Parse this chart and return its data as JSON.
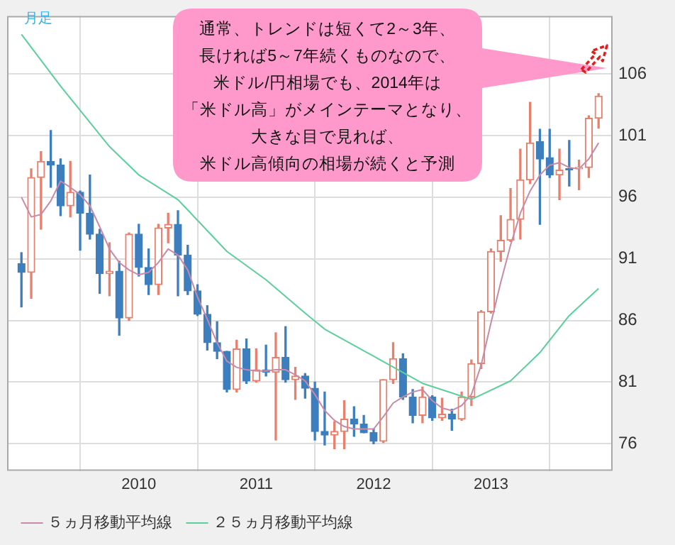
{
  "chart_data": {
    "type": "candlestick",
    "x": [
      "2009-01",
      "2009-02",
      "2009-03",
      "2009-04",
      "2009-05",
      "2009-06",
      "2009-07",
      "2009-08",
      "2009-09",
      "2009-10",
      "2009-11",
      "2009-12",
      "2010-01",
      "2010-02",
      "2010-03",
      "2010-04",
      "2010-05",
      "2010-06",
      "2010-07",
      "2010-08",
      "2010-09",
      "2010-10",
      "2010-11",
      "2010-12",
      "2011-01",
      "2011-02",
      "2011-03",
      "2011-04",
      "2011-05",
      "2011-06",
      "2011-07",
      "2011-08",
      "2011-09",
      "2011-10",
      "2011-11",
      "2011-12",
      "2012-01",
      "2012-02",
      "2012-03",
      "2012-04",
      "2012-05",
      "2012-06",
      "2012-07",
      "2012-08",
      "2012-09",
      "2012-10",
      "2012-11",
      "2012-12",
      "2013-01",
      "2013-02",
      "2013-03",
      "2013-04",
      "2013-05",
      "2013-06",
      "2013-07",
      "2013-08",
      "2013-09",
      "2013-10",
      "2013-11",
      "2013-12"
    ],
    "ohlc": [
      [
        90.6,
        91.5,
        87.1,
        89.9
      ],
      [
        89.9,
        98.3,
        87.8,
        97.6
      ],
      [
        97.6,
        99.7,
        93.4,
        98.9
      ],
      [
        98.9,
        101.4,
        96.8,
        98.6
      ],
      [
        98.6,
        99.1,
        94.5,
        95.3
      ],
      [
        95.3,
        98.9,
        94.4,
        96.4
      ],
      [
        96.4,
        96.5,
        91.7,
        94.7
      ],
      [
        94.7,
        97.8,
        92.6,
        93.0
      ],
      [
        93.0,
        93.4,
        88.2,
        89.8
      ],
      [
        89.8,
        92.3,
        88.0,
        90.0
      ],
      [
        90.0,
        90.8,
        84.8,
        86.2
      ],
      [
        86.2,
        93.1,
        86.0,
        93.0
      ],
      [
        93.0,
        93.8,
        89.6,
        90.3
      ],
      [
        90.3,
        91.8,
        88.1,
        88.9
      ],
      [
        88.9,
        93.8,
        88.1,
        93.5
      ],
      [
        93.5,
        94.7,
        92.3,
        93.8
      ],
      [
        93.8,
        94.9,
        88.0,
        91.3
      ],
      [
        91.3,
        92.1,
        88.1,
        88.4
      ],
      [
        88.4,
        88.9,
        86.4,
        86.5
      ],
      [
        86.5,
        87.2,
        83.6,
        84.2
      ],
      [
        84.2,
        85.9,
        82.9,
        83.5
      ],
      [
        83.5,
        83.5,
        80.2,
        80.4
      ],
      [
        80.4,
        84.4,
        80.2,
        83.7
      ],
      [
        83.7,
        84.5,
        80.9,
        81.1
      ],
      [
        81.1,
        83.7,
        81.0,
        82.0
      ],
      [
        82.0,
        84.0,
        81.5,
        81.8
      ],
      [
        81.8,
        85.0,
        76.3,
        83.0
      ],
      [
        83.0,
        85.5,
        81.0,
        81.2
      ],
      [
        81.2,
        82.2,
        79.6,
        81.5
      ],
      [
        81.5,
        81.7,
        79.7,
        80.5
      ],
      [
        80.5,
        81.0,
        76.3,
        77.0
      ],
      [
        77.0,
        80.2,
        75.9,
        76.7
      ],
      [
        76.7,
        77.8,
        75.6,
        77.0
      ],
      [
        77.0,
        79.5,
        75.6,
        78.0
      ],
      [
        78.0,
        79.0,
        76.6,
        77.6
      ],
      [
        77.6,
        78.3,
        76.9,
        76.9
      ],
      [
        76.9,
        77.2,
        76.0,
        76.2
      ],
      [
        76.2,
        81.2,
        76.1,
        81.2
      ],
      [
        81.2,
        84.2,
        80.9,
        82.9
      ],
      [
        82.9,
        83.3,
        79.6,
        79.8
      ],
      [
        79.8,
        80.4,
        77.7,
        78.3
      ],
      [
        78.3,
        80.6,
        77.7,
        79.8
      ],
      [
        79.8,
        79.9,
        77.9,
        78.1
      ],
      [
        78.1,
        79.7,
        77.9,
        78.4
      ],
      [
        78.4,
        78.8,
        77.1,
        78.0
      ],
      [
        78.0,
        80.2,
        77.9,
        79.8
      ],
      [
        79.8,
        82.8,
        79.1,
        82.5
      ],
      [
        82.5,
        86.8,
        82.1,
        86.7
      ],
      [
        86.7,
        91.8,
        86.6,
        91.6
      ],
      [
        91.6,
        94.5,
        90.8,
        92.5
      ],
      [
        92.5,
        96.7,
        92.4,
        94.2
      ],
      [
        94.2,
        99.9,
        92.6,
        97.4
      ],
      [
        97.4,
        103.7,
        97.1,
        100.4
      ],
      [
        100.5,
        101.5,
        93.8,
        99.1
      ],
      [
        99.2,
        101.5,
        97.6,
        97.8
      ],
      [
        97.8,
        99.9,
        95.8,
        98.2
      ],
      [
        98.3,
        100.6,
        96.9,
        98.2
      ],
      [
        98.3,
        99.0,
        96.6,
        98.4
      ],
      [
        98.4,
        102.6,
        97.6,
        102.4
      ],
      [
        102.4,
        104.4,
        101.6,
        104.2
      ]
    ],
    "colors": [
      "#3d7ebf",
      "#e8806e",
      "#e8806e",
      "#3d7ebf",
      "#3d7ebf",
      "#e8806e",
      "#3d7ebf",
      "#3d7ebf",
      "#3d7ebf",
      "#e8806e",
      "#3d7ebf",
      "#e8806e",
      "#3d7ebf",
      "#3d7ebf",
      "#e8806e",
      "#e8806e",
      "#3d7ebf",
      "#3d7ebf",
      "#3d7ebf",
      "#3d7ebf",
      "#3d7ebf",
      "#3d7ebf",
      "#e8806e",
      "#3d7ebf",
      "#e8806e",
      "#3d7ebf",
      "#e8806e",
      "#3d7ebf",
      "#e8806e",
      "#3d7ebf",
      "#3d7ebf",
      "#3d7ebf",
      "#e8806e",
      "#e8806e",
      "#3d7ebf",
      "#3d7ebf",
      "#3d7ebf",
      "#e8806e",
      "#e8806e",
      "#3d7ebf",
      "#3d7ebf",
      "#e8806e",
      "#3d7ebf",
      "#e8806e",
      "#3d7ebf",
      "#e8806e",
      "#e8806e",
      "#e8806e",
      "#e8806e",
      "#e8806e",
      "#e8806e",
      "#e8806e",
      "#e8806e",
      "#3d7ebf",
      "#3d7ebf",
      "#e8806e",
      "#3d7ebf",
      "#e8806e",
      "#e8806e",
      "#e8806e"
    ],
    "series": [
      {
        "name": "５ヵ月移動平均線",
        "type": "line",
        "color": "#c98aa8",
        "values": [
          96.0,
          94.4,
          94.6,
          95.7,
          97.3,
          96.8,
          96.2,
          95.3,
          93.6,
          91.8,
          90.7,
          90.1,
          89.7,
          89.9,
          90.7,
          91.8,
          91.3,
          90.1,
          87.9,
          86.1,
          84.2,
          82.7,
          82.2,
          82.0,
          81.9,
          81.9,
          82.0,
          82.0,
          81.6,
          81.1,
          80.0,
          78.7,
          77.9,
          77.4,
          77.2,
          77.2,
          77.2,
          78.2,
          79.3,
          79.8,
          80.2,
          80.4,
          79.5,
          78.9,
          78.7,
          79.1,
          80.0,
          82.4,
          85.8,
          89.1,
          92.1,
          94.7,
          96.5,
          97.8,
          98.6,
          98.8,
          98.4,
          98.3,
          99.1,
          100.4
        ]
      },
      {
        "name": "２５ヵ月移動平均線",
        "type": "line",
        "color": "#5ccf9a",
        "x": [
          "2009-01",
          "2009-05",
          "2009-10",
          "2010-01",
          "2010-05",
          "2010-10",
          "2011-02",
          "2011-06",
          "2011-08",
          "2012-01",
          "2012-06",
          "2012-11",
          "2013-03",
          "2013-06",
          "2013-09",
          "2013-12"
        ],
        "values": [
          109.2,
          105.0,
          100.1,
          97.8,
          95.8,
          91.6,
          89.3,
          86.6,
          85.3,
          83.1,
          80.9,
          79.6,
          81.1,
          83.4,
          86.4,
          88.6
        ]
      }
    ],
    "xlim": [
      "2008-11-17",
      "2014-01-14"
    ],
    "xticks": [
      "2010",
      "2011",
      "2012",
      "2013"
    ],
    "ylim": [
      73.8,
      110.7
    ],
    "yticks": [
      76,
      81,
      86,
      91,
      96,
      101,
      106
    ],
    "grid": true,
    "legend": "bottom",
    "marker": "none",
    "annotations": [
      "月足",
      "通常、トレンドは短くて2～3年、",
      "長ければ5～7年続くものなので、",
      "米ドル/円相場でも、2014年は",
      "「米ドル高」がメインテーマとなり、",
      "大きな目で見れば、",
      "米ドル高傾向の相場が続くと予測"
    ]
  }
}
